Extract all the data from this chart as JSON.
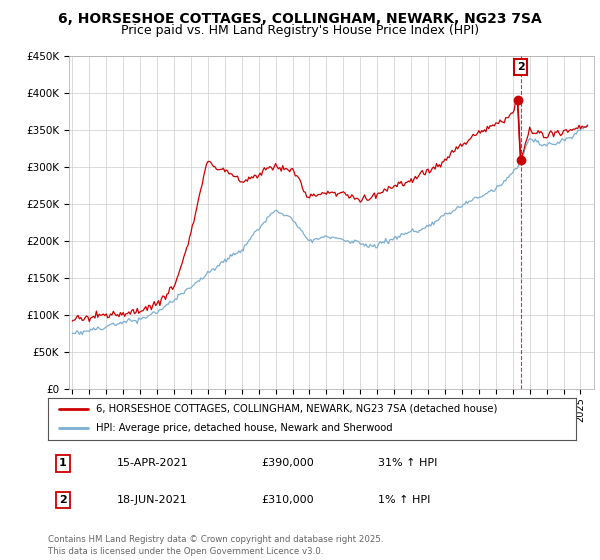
{
  "title": "6, HORSESHOE COTTAGES, COLLINGHAM, NEWARK, NG23 7SA",
  "subtitle": "Price paid vs. HM Land Registry's House Price Index (HPI)",
  "title_fontsize": 10,
  "subtitle_fontsize": 9,
  "ylim": [
    0,
    450000
  ],
  "yticks": [
    0,
    50000,
    100000,
    150000,
    200000,
    250000,
    300000,
    350000,
    400000,
    450000
  ],
  "ytick_labels": [
    "£0",
    "£50K",
    "£100K",
    "£150K",
    "£200K",
    "£250K",
    "£300K",
    "£350K",
    "£400K",
    "£450K"
  ],
  "xlim_start": 1994.8,
  "xlim_end": 2025.8,
  "red_color": "#cc0000",
  "blue_color": "#7cafd4",
  "transaction1_year": 2021.29,
  "transaction1_price": 390000,
  "transaction2_year": 2021.46,
  "transaction2_price": 310000,
  "legend_line1": "6, HORSESHOE COTTAGES, COLLINGHAM, NEWARK, NG23 7SA (detached house)",
  "legend_line2": "HPI: Average price, detached house, Newark and Sherwood",
  "footnote": "Contains HM Land Registry data © Crown copyright and database right 2025.\nThis data is licensed under the Open Government Licence v3.0.",
  "table": [
    {
      "num": "1",
      "date": "15-APR-2021",
      "price": "£390,000",
      "hpi": "31% ↑ HPI"
    },
    {
      "num": "2",
      "date": "18-JUN-2021",
      "price": "£310,000",
      "hpi": "1% ↑ HPI"
    }
  ],
  "background_color": "#ffffff",
  "grid_color": "#cccccc"
}
